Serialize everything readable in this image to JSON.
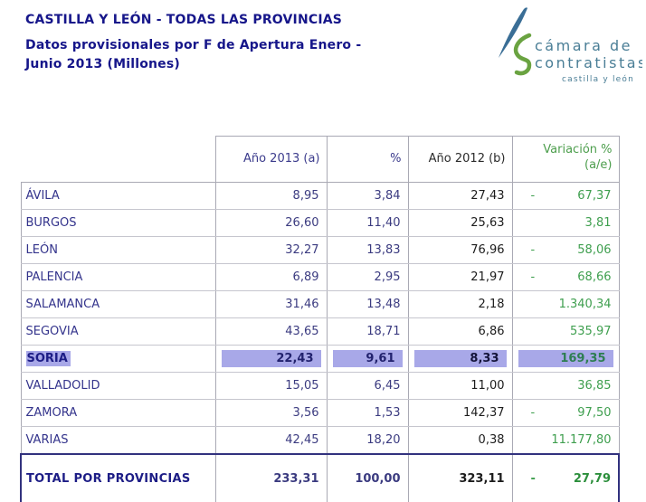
{
  "header": {
    "title": "CASTILLA Y LEÓN - TODAS LAS PROVINCIAS",
    "subtitle": "Datos provisionales por F de Apertura Enero - Junio 2013 (Millones)"
  },
  "logo": {
    "line1": "cámara de",
    "line2": "contratistas",
    "line3": "castilla y león"
  },
  "table": {
    "headers": {
      "province": "",
      "y2013": "Año 2013 (a)",
      "pct": "%",
      "y2012": "Año 2012 (b)",
      "variation_line1": "Variación %",
      "variation_line2": "(a/e)"
    },
    "rows": [
      {
        "province": "ÁVILA",
        "y2013": "8,95",
        "pct": "3,84",
        "y2012": "27,43",
        "minus": "-",
        "variation": "67,37",
        "highlighted": false
      },
      {
        "province": "BURGOS",
        "y2013": "26,60",
        "pct": "11,40",
        "y2012": "25,63",
        "minus": "",
        "variation": "3,81",
        "highlighted": false
      },
      {
        "province": "LEÓN",
        "y2013": "32,27",
        "pct": "13,83",
        "y2012": "76,96",
        "minus": "-",
        "variation": "58,06",
        "highlighted": false
      },
      {
        "province": "PALENCIA",
        "y2013": "6,89",
        "pct": "2,95",
        "y2012": "21,97",
        "minus": "-",
        "variation": "68,66",
        "highlighted": false
      },
      {
        "province": "SALAMANCA",
        "y2013": "31,46",
        "pct": "13,48",
        "y2012": "2,18",
        "minus": "",
        "variation": "1.340,34",
        "highlighted": false
      },
      {
        "province": "SEGOVIA",
        "y2013": "43,65",
        "pct": "18,71",
        "y2012": "6,86",
        "minus": "",
        "variation": "535,97",
        "highlighted": false
      },
      {
        "province": "SORIA",
        "y2013": "22,43",
        "pct": "9,61",
        "y2012": "8,33",
        "minus": "",
        "variation": "169,35",
        "highlighted": true
      },
      {
        "province": "VALLADOLID",
        "y2013": "15,05",
        "pct": "6,45",
        "y2012": "11,00",
        "minus": "",
        "variation": "36,85",
        "highlighted": false
      },
      {
        "province": "ZAMORA",
        "y2013": "3,56",
        "pct": "1,53",
        "y2012": "142,37",
        "minus": "-",
        "variation": "97,50",
        "highlighted": false
      },
      {
        "province": "VARIAS",
        "y2013": "42,45",
        "pct": "18,20",
        "y2012": "0,38",
        "minus": "",
        "variation": "11.177,80",
        "highlighted": false
      }
    ],
    "total": {
      "label": "TOTAL POR PROVINCIAS",
      "y2013": "233,31",
      "pct": "100,00",
      "y2012": "323,11",
      "minus": "-",
      "variation": "27,79"
    }
  },
  "colors": {
    "title_navy": "#16168a",
    "number_navy": "#3b3b80",
    "number_black": "#1c1c1c",
    "green": "#3f9f4f",
    "row_highlight": "#a8a8e8",
    "grid_line": "#a9a9b4",
    "total_border": "#32327e",
    "logo_teal": "#4a7e96",
    "logo_blue": "#3a6e96",
    "logo_green": "#6aa341"
  }
}
